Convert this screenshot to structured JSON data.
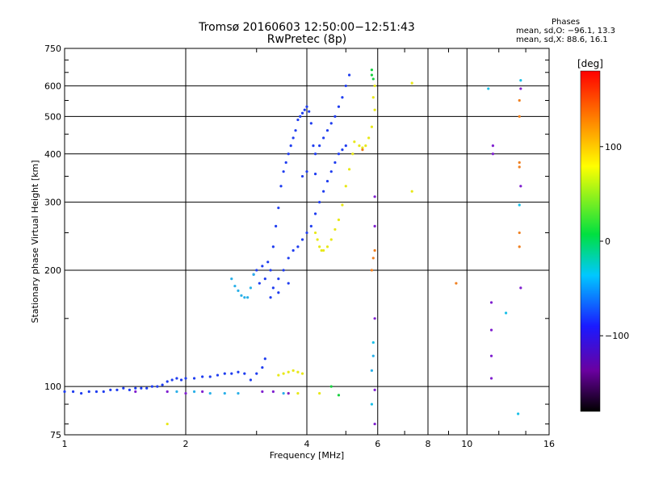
{
  "header": {
    "title_line1": "Tromsø 20160603 12:50:00−12:51:43",
    "title_line2": "RwPretec (8p)"
  },
  "phases": {
    "heading": "Phases",
    "o_line": "mean, sd,O: −96.1, 13.3",
    "x_line": "mean, sd,X:  88.6, 16.1"
  },
  "colorbar": {
    "unit_label": "[deg]",
    "ticks": [
      "100",
      "0",
      "−100"
    ]
  },
  "chart_data": {
    "type": "scatter",
    "xlabel": "Frequency [MHz]",
    "ylabel": "Stationary phase Virtual Height [km]",
    "x_scale": "log",
    "y_scale": "log",
    "xlim": [
      1,
      16
    ],
    "ylim": [
      75,
      750
    ],
    "x_ticks": [
      1,
      2,
      4,
      6,
      8,
      10,
      16
    ],
    "x_tick_labels": [
      "1",
      "2",
      "4",
      "6",
      "8",
      "10",
      "16"
    ],
    "y_ticks": [
      75,
      100,
      200,
      300,
      400,
      500,
      600,
      750
    ],
    "y_tick_labels": [
      "75",
      "100",
      "200",
      "300",
      "400",
      "500",
      "600",
      "750"
    ],
    "grid": true,
    "colorbar": {
      "range": [
        -180,
        180
      ],
      "ticks": [
        100,
        0,
        -100
      ],
      "label": "[deg]"
    },
    "series": [
      {
        "color": "#1f3df0",
        "points": [
          [
            1.0,
            97
          ],
          [
            1.05,
            97
          ],
          [
            1.1,
            96
          ],
          [
            1.15,
            97
          ],
          [
            1.2,
            97
          ],
          [
            1.25,
            97
          ],
          [
            1.3,
            98
          ],
          [
            1.35,
            98
          ],
          [
            1.4,
            99
          ],
          [
            1.45,
            98
          ],
          [
            1.5,
            99
          ],
          [
            1.55,
            99
          ],
          [
            1.6,
            99
          ],
          [
            1.65,
            100
          ],
          [
            1.7,
            100
          ],
          [
            1.75,
            101
          ],
          [
            1.8,
            103
          ],
          [
            1.85,
            104
          ],
          [
            1.9,
            105
          ],
          [
            1.95,
            104
          ],
          [
            2.0,
            105
          ],
          [
            2.1,
            105
          ],
          [
            2.2,
            106
          ],
          [
            2.3,
            106
          ],
          [
            2.4,
            107
          ],
          [
            2.5,
            108
          ],
          [
            2.6,
            108
          ],
          [
            2.7,
            109
          ],
          [
            2.8,
            108
          ],
          [
            2.9,
            104
          ],
          [
            3.0,
            108
          ],
          [
            3.1,
            112
          ],
          [
            3.15,
            118
          ],
          [
            3.25,
            200
          ],
          [
            3.3,
            230
          ],
          [
            3.35,
            260
          ],
          [
            3.4,
            290
          ],
          [
            3.45,
            330
          ],
          [
            3.5,
            360
          ],
          [
            3.55,
            380
          ],
          [
            3.6,
            400
          ],
          [
            3.65,
            420
          ],
          [
            3.7,
            440
          ],
          [
            3.75,
            460
          ],
          [
            3.8,
            490
          ],
          [
            3.85,
            500
          ],
          [
            3.9,
            510
          ],
          [
            3.95,
            520
          ],
          [
            4.0,
            530
          ],
          [
            4.05,
            515
          ],
          [
            4.1,
            480
          ],
          [
            4.15,
            420
          ],
          [
            4.2,
            400
          ],
          [
            4.3,
            420
          ],
          [
            4.4,
            440
          ],
          [
            4.5,
            460
          ],
          [
            4.6,
            480
          ],
          [
            4.7,
            500
          ],
          [
            4.8,
            530
          ],
          [
            4.9,
            560
          ],
          [
            5.0,
            600
          ],
          [
            5.1,
            640
          ],
          [
            3.3,
            180
          ],
          [
            3.4,
            190
          ],
          [
            3.5,
            200
          ],
          [
            3.6,
            215
          ],
          [
            3.7,
            225
          ],
          [
            3.8,
            230
          ],
          [
            3.9,
            240
          ],
          [
            4.0,
            250
          ],
          [
            4.1,
            260
          ],
          [
            4.2,
            280
          ],
          [
            4.3,
            300
          ],
          [
            4.4,
            320
          ],
          [
            4.5,
            340
          ],
          [
            4.6,
            360
          ],
          [
            4.7,
            380
          ],
          [
            4.8,
            400
          ],
          [
            4.9,
            410
          ],
          [
            5.0,
            420
          ],
          [
            3.25,
            170
          ],
          [
            3.4,
            175
          ],
          [
            3.6,
            185
          ],
          [
            4.0,
            360
          ],
          [
            4.2,
            355
          ],
          [
            3.9,
            350
          ],
          [
            3.2,
            210
          ],
          [
            3.1,
            205
          ],
          [
            3.0,
            200
          ],
          [
            2.95,
            195
          ],
          [
            3.05,
            185
          ],
          [
            3.15,
            190
          ]
        ]
      },
      {
        "color": "#2ab0e8",
        "points": [
          [
            2.6,
            190
          ],
          [
            2.65,
            182
          ],
          [
            2.7,
            177
          ],
          [
            2.75,
            172
          ],
          [
            2.8,
            170
          ],
          [
            2.85,
            170
          ],
          [
            2.9,
            180
          ],
          [
            2.95,
            195
          ],
          [
            1.9,
            97
          ],
          [
            2.1,
            97
          ],
          [
            2.3,
            96
          ],
          [
            2.5,
            96
          ],
          [
            2.7,
            96
          ],
          [
            3.5,
            96
          ],
          [
            5.85,
            120
          ],
          [
            5.8,
            110
          ]
        ]
      },
      {
        "color": "#e8e818",
        "points": [
          [
            3.4,
            107
          ],
          [
            3.5,
            108
          ],
          [
            3.6,
            109
          ],
          [
            3.7,
            110
          ],
          [
            3.8,
            109
          ],
          [
            3.9,
            108
          ],
          [
            4.2,
            250
          ],
          [
            4.25,
            240
          ],
          [
            4.3,
            230
          ],
          [
            4.35,
            225
          ],
          [
            4.4,
            225
          ],
          [
            4.5,
            230
          ],
          [
            4.6,
            240
          ],
          [
            4.7,
            255
          ],
          [
            4.8,
            270
          ],
          [
            4.9,
            295
          ],
          [
            5.0,
            330
          ],
          [
            5.1,
            365
          ],
          [
            5.2,
            400
          ],
          [
            5.25,
            430
          ],
          [
            5.4,
            420
          ],
          [
            5.5,
            415
          ],
          [
            5.6,
            420
          ],
          [
            5.7,
            440
          ],
          [
            5.8,
            470
          ],
          [
            5.9,
            520
          ],
          [
            5.85,
            560
          ],
          [
            5.9,
            600
          ],
          [
            7.3,
            320
          ],
          [
            7.3,
            610
          ],
          [
            3.6,
            96
          ],
          [
            3.8,
            96
          ],
          [
            4.3,
            96
          ],
          [
            1.8,
            80
          ]
        ]
      },
      {
        "color": "#8020d0",
        "points": [
          [
            1.5,
            97
          ],
          [
            1.8,
            97
          ],
          [
            2.0,
            96
          ],
          [
            2.2,
            97
          ],
          [
            3.1,
            97
          ],
          [
            3.3,
            97
          ],
          [
            3.6,
            96
          ],
          [
            5.9,
            80
          ],
          [
            5.9,
            98
          ],
          [
            5.9,
            150
          ],
          [
            5.9,
            260
          ],
          [
            5.9,
            310
          ],
          [
            11.5,
            105
          ],
          [
            11.5,
            120
          ],
          [
            11.5,
            140
          ],
          [
            11.5,
            165
          ],
          [
            11.6,
            400
          ],
          [
            11.6,
            420
          ],
          [
            13.6,
            330
          ],
          [
            13.6,
            180
          ],
          [
            13.6,
            590
          ]
        ]
      },
      {
        "color": "#f08020",
        "points": [
          [
            5.8,
            200
          ],
          [
            5.85,
            215
          ],
          [
            5.9,
            225
          ],
          [
            13.5,
            230
          ],
          [
            13.5,
            250
          ],
          [
            13.5,
            370
          ],
          [
            13.5,
            380
          ],
          [
            13.5,
            500
          ],
          [
            13.5,
            550
          ],
          [
            9.4,
            185
          ],
          [
            5.5,
            410
          ]
        ]
      },
      {
        "color": "#18d040",
        "points": [
          [
            4.6,
            100
          ],
          [
            4.8,
            95
          ],
          [
            5.8,
            640
          ],
          [
            5.85,
            625
          ],
          [
            5.8,
            660
          ]
        ]
      },
      {
        "color": "#18c0e8",
        "points": [
          [
            5.85,
            130
          ],
          [
            5.8,
            90
          ],
          [
            11.3,
            590
          ],
          [
            12.5,
            155
          ],
          [
            13.4,
            85
          ],
          [
            13.5,
            295
          ],
          [
            13.6,
            620
          ]
        ]
      }
    ]
  }
}
